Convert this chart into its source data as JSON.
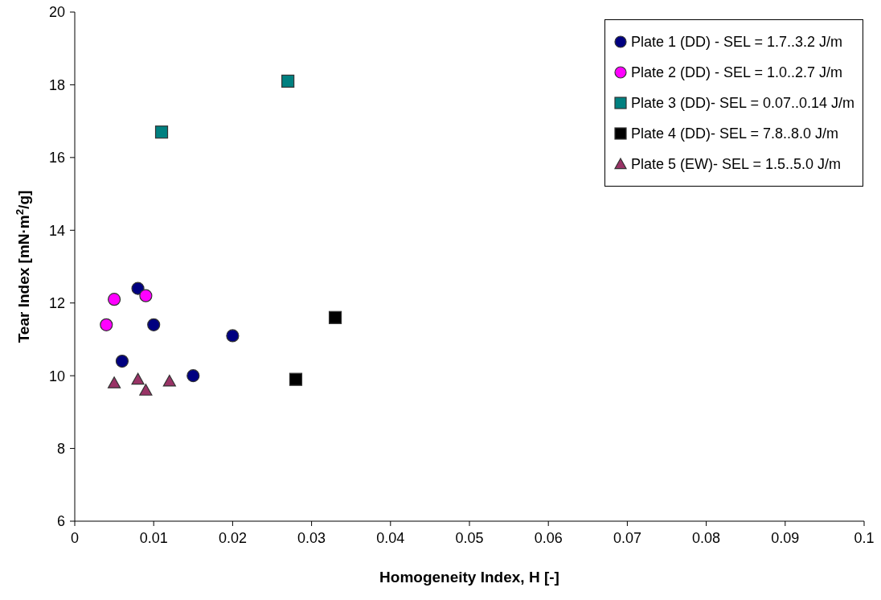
{
  "chart_data": {
    "type": "scatter",
    "xlabel": "Homogeneity Index, H  [-]",
    "ylabel": "Tear Index [mN·m$^{2}$/g]",
    "xlim": [
      0,
      0.1
    ],
    "xticks": [
      0,
      0.01,
      0.02,
      0.03,
      0.04,
      0.05,
      0.06,
      0.07,
      0.08,
      0.09,
      0.1
    ],
    "ylim": [
      6,
      20
    ],
    "yticks": [
      6,
      8,
      10,
      12,
      14,
      16,
      18,
      20
    ],
    "grid": false,
    "legend": "top right",
    "series": [
      {
        "name": "Plate 1 (DD) - SEL = 1.7..3.2 J/m",
        "color": "#000080",
        "marker": "circle",
        "x": [
          0.008,
          0.01,
          0.006,
          0.015,
          0.02
        ],
        "values": [
          12.4,
          11.4,
          10.4,
          10.0,
          11.1
        ]
      },
      {
        "name": "Plate 2 (DD) - SEL = 1.0..2.7 J/m",
        "color": "#ff00ff",
        "marker": "circle",
        "x": [
          0.004,
          0.005,
          0.009
        ],
        "values": [
          11.4,
          12.1,
          12.2
        ]
      },
      {
        "name": "Plate 3 (DD)- SEL = 0.07..0.14 J/m",
        "color": "#008080",
        "marker": "square",
        "x": [
          0.011,
          0.027
        ],
        "values": [
          16.7,
          18.1
        ]
      },
      {
        "name": "Plate 4 (DD)- SEL = 7.8..8.0 J/m",
        "color": "#000000",
        "marker": "square",
        "x": [
          0.028,
          0.033
        ],
        "values": [
          9.9,
          11.6
        ]
      },
      {
        "name": "Plate 5 (EW)- SEL = 1.5..5.0 J/m",
        "color": "#993366",
        "marker": "triangle",
        "x": [
          0.005,
          0.008,
          0.009,
          0.012
        ],
        "values": [
          9.8,
          9.9,
          9.6,
          9.85
        ]
      }
    ]
  }
}
